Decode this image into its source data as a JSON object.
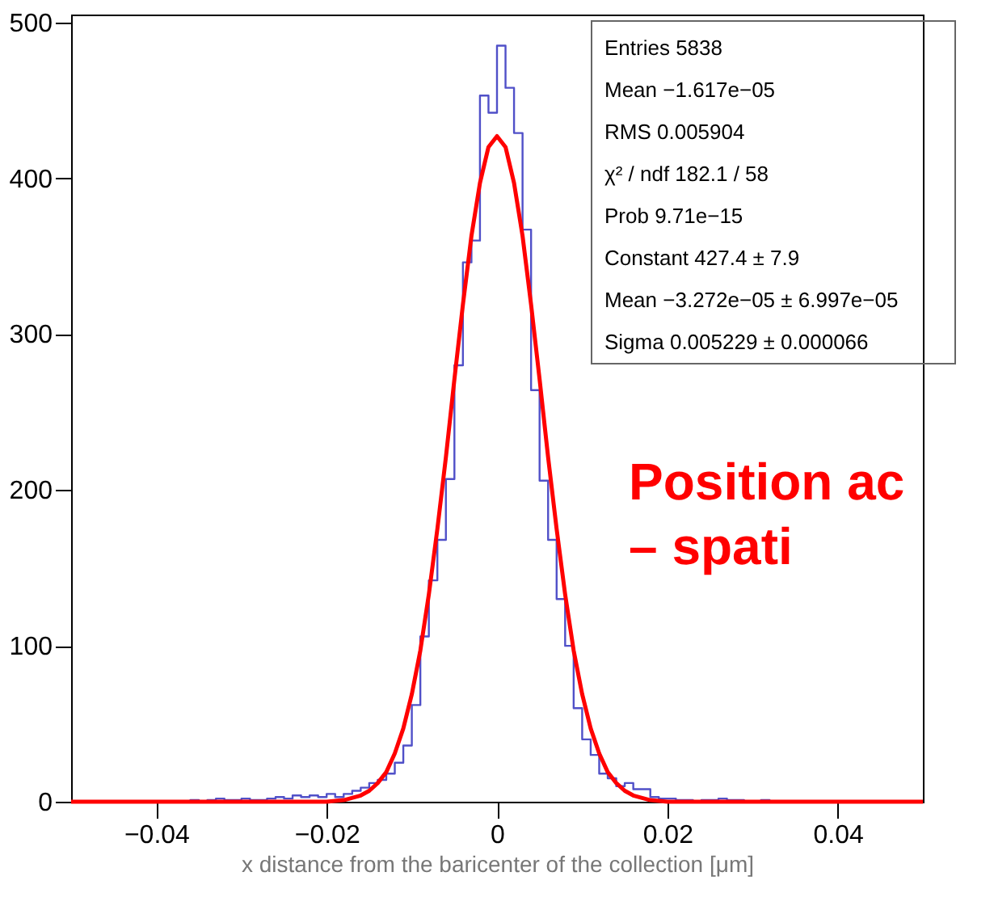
{
  "chart_data": {
    "type": "histogram",
    "xlabel": "x distance from the baricenter of the collection [μm]",
    "bins": [
      -0.05,
      -0.049,
      -0.048,
      -0.047,
      -0.046,
      -0.045,
      -0.044,
      -0.043,
      -0.042,
      -0.041,
      -0.04,
      -0.039,
      -0.038,
      -0.037,
      -0.036,
      -0.035,
      -0.034,
      -0.033,
      -0.032,
      -0.031,
      -0.03,
      -0.029,
      -0.028,
      -0.027,
      -0.026,
      -0.025,
      -0.024,
      -0.023,
      -0.022,
      -0.021,
      -0.02,
      -0.019,
      -0.018,
      -0.017,
      -0.016,
      -0.015,
      -0.014,
      -0.013,
      -0.012,
      -0.011,
      -0.01,
      -0.009,
      -0.008,
      -0.007,
      -0.006,
      -0.005,
      -0.004,
      -0.003,
      -0.002,
      -0.001,
      0,
      0.001,
      0.002,
      0.003,
      0.004,
      0.005,
      0.006,
      0.007,
      0.008,
      0.009,
      0.01,
      0.011,
      0.012,
      0.013,
      0.014,
      0.015,
      0.016,
      0.017,
      0.018,
      0.019,
      0.02,
      0.021,
      0.022,
      0.023,
      0.024,
      0.025,
      0.026,
      0.027,
      0.028,
      0.029,
      0.03,
      0.031,
      0.032,
      0.033,
      0.034,
      0.035,
      0.036,
      0.037,
      0.038,
      0.039,
      0.04,
      0.041,
      0.042,
      0.043,
      0.044,
      0.045,
      0.046,
      0.047,
      0.048,
      0.049,
      0.05
    ],
    "series": [
      {
        "type": "histogram",
        "color": "#5050c8",
        "values": [
          0,
          0,
          0,
          0,
          0,
          0,
          0,
          0,
          0,
          0,
          0,
          0,
          0,
          0,
          1,
          0,
          1,
          2,
          1,
          1,
          2,
          1,
          1,
          2,
          3,
          2,
          4,
          3,
          4,
          3,
          5,
          3,
          5,
          7,
          9,
          12,
          14,
          18,
          25,
          36,
          62,
          106,
          142,
          168,
          207,
          280,
          346,
          360,
          453,
          442,
          485,
          458,
          429,
          367,
          264,
          206,
          168,
          130,
          100,
          60,
          40,
          30,
          18,
          15,
          10,
          12,
          8,
          8,
          3,
          2,
          2,
          1,
          1,
          0,
          1,
          1,
          2,
          1,
          1,
          0,
          0,
          1,
          0,
          0,
          0,
          0,
          0,
          0,
          0,
          0,
          0,
          0,
          0,
          0,
          0,
          0,
          0,
          0,
          0,
          0
        ]
      },
      {
        "type": "line",
        "color": "#ff0000",
        "x": [
          -0.05,
          -0.025,
          -0.02,
          -0.018,
          -0.016,
          -0.015,
          -0.014,
          -0.013,
          -0.012,
          -0.011,
          -0.01,
          -0.009,
          -0.008,
          -0.007,
          -0.006,
          -0.005,
          -0.004,
          -0.003,
          -0.002,
          -0.001,
          0,
          0.001,
          0.002,
          0.003,
          0.004,
          0.005,
          0.006,
          0.007,
          0.008,
          0.009,
          0.01,
          0.011,
          0.012,
          0.013,
          0.014,
          0.015,
          0.016,
          0.018,
          0.02,
          0.025,
          0.05
        ],
        "values": [
          0,
          0,
          0,
          1,
          4,
          7,
          12,
          19,
          31,
          47,
          69,
          97,
          133,
          175,
          221,
          271,
          319,
          363,
          397,
          420,
          427,
          420,
          397,
          363,
          319,
          271,
          221,
          175,
          133,
          97,
          69,
          47,
          31,
          19,
          12,
          7,
          4,
          1,
          0,
          0,
          0
        ]
      }
    ],
    "xlim": [
      -0.05,
      0.05
    ],
    "xticks": [
      {
        "value": -0.04,
        "label": "−0.04"
      },
      {
        "value": -0.02,
        "label": "−0.02"
      },
      0,
      0.02,
      0.04
    ],
    "ylim": [
      0,
      505
    ],
    "yticks": [
      0,
      100,
      200,
      300,
      400,
      500
    ],
    "grid": false,
    "annotations": [
      "Entries 5838",
      "Mean −1.617e−05",
      "RMS 0.005904",
      "χ² / ndf 182.1 / 58",
      "Prob 9.71e−15",
      "Constant 427.4 ± 7.9",
      "Mean −3.272e−05 ± 6.997e−05",
      "Sigma 0.005229 ± 0.000066",
      "Position ac",
      "– spati"
    ]
  }
}
